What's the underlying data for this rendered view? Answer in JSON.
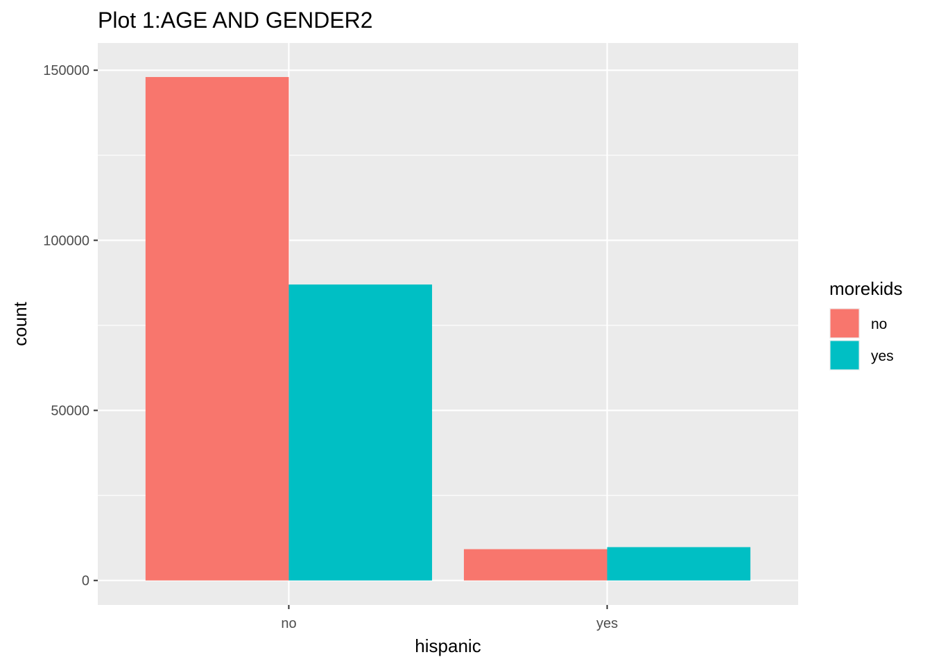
{
  "chart_data": {
    "type": "bar",
    "title": "Plot 1:AGE AND GENDER2",
    "xlabel": "hispanic",
    "ylabel": "count",
    "categories": [
      "no",
      "yes"
    ],
    "series": [
      {
        "name": "no",
        "color": "#F8766D",
        "values": [
          148000,
          9200
        ]
      },
      {
        "name": "yes",
        "color": "#00BFC4",
        "values": [
          87000,
          9800
        ]
      }
    ],
    "ylim": [
      -7200,
      158000
    ],
    "yticks": [
      0,
      50000,
      100000,
      150000
    ],
    "ytick_labels": [
      "0",
      "50000",
      "100000",
      "150000"
    ],
    "grid": true,
    "panel_background": "#EBEBEB",
    "legend": {
      "title": "morekids",
      "position": "right"
    }
  }
}
